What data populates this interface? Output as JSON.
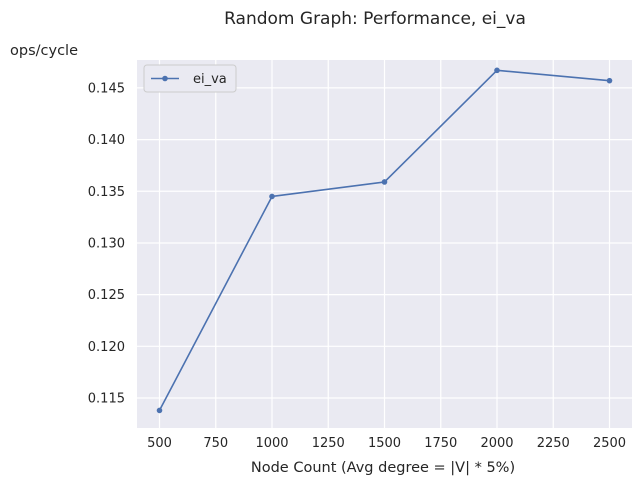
{
  "chart_data": {
    "type": "line",
    "title": "Random Graph: Performance, ei_va",
    "xlabel": "Node Count (Avg degree = |V| * 5%)",
    "ylabel": "ops/cycle",
    "x": [
      500,
      1000,
      1500,
      2000,
      2500
    ],
    "x_ticks": [
      "500",
      "750",
      "1000",
      "1250",
      "1500",
      "1750",
      "2000",
      "2250",
      "2500"
    ],
    "y_ticks": [
      "0.115",
      "0.120",
      "0.125",
      "0.130",
      "0.135",
      "0.140",
      "0.145"
    ],
    "xlim": [
      400,
      2600
    ],
    "ylim": [
      0.1121,
      0.1477
    ],
    "grid": true,
    "legend_position": "upper-left",
    "background_color": "#eaeaf2",
    "grid_color": "#ffffff",
    "series": [
      {
        "name": "ei_va",
        "color": "#4c72b0",
        "marker": "circle",
        "values": [
          0.1138,
          0.1345,
          0.1359,
          0.1467,
          0.1457
        ]
      }
    ]
  }
}
